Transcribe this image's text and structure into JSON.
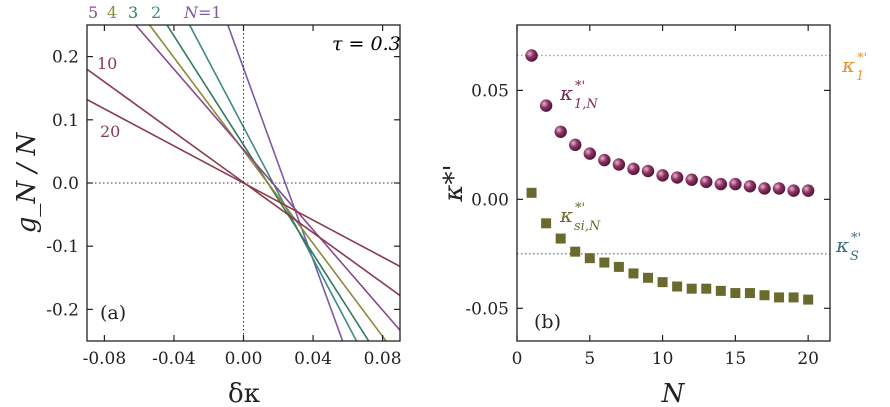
{
  "chart_data": [
    {
      "type": "line",
      "panel": "(a)",
      "annotation": "τ = 0.3",
      "xlabel": "δκ",
      "ylabel": "g_N / N",
      "xlim": [
        -0.09,
        0.09
      ],
      "ylim": [
        -0.25,
        0.25
      ],
      "xticks": [
        -0.08,
        -0.04,
        0.0,
        0.04,
        0.08
      ],
      "xtick_labels": [
        "-0.08",
        "-0.04",
        "0.00",
        "0.04",
        "0.08"
      ],
      "yticks": [
        0.2,
        0.1,
        0.0,
        -0.1,
        -0.2
      ],
      "ytick_labels": [
        "0.2",
        "0.1",
        "0.0",
        "-0.1",
        "-0.2"
      ],
      "grid": false,
      "reference_lines": {
        "x": 0.0,
        "y": 0.0
      },
      "series": [
        {
          "name": "N=1",
          "label": "N=1",
          "color": "#7b5aa6",
          "x": [
            -0.009,
            0.057
          ],
          "y": [
            0.25,
            -0.25
          ]
        },
        {
          "name": "2",
          "label": "2",
          "color": "#3d8a86",
          "x": [
            -0.031,
            0.065
          ],
          "y": [
            0.25,
            -0.25
          ]
        },
        {
          "name": "3",
          "label": "3",
          "color": "#2f7a5c",
          "x": [
            -0.044,
            0.072
          ],
          "y": [
            0.25,
            -0.25
          ]
        },
        {
          "name": "4",
          "label": "4",
          "color": "#8c8a3a",
          "x": [
            -0.054,
            0.082
          ],
          "y": [
            0.25,
            -0.25
          ]
        },
        {
          "name": "5",
          "label": "5",
          "color": "#8a4a8a",
          "x": [
            -0.062,
            0.09
          ],
          "y": [
            0.25,
            -0.233
          ]
        },
        {
          "name": "10",
          "label": "10",
          "color": "#8a3a4a",
          "x": [
            -0.09,
            0.09
          ],
          "y": [
            0.18,
            -0.178
          ]
        },
        {
          "name": "20",
          "label": "20",
          "color": "#8a3a4a",
          "x": [
            -0.09,
            0.09
          ],
          "y": [
            0.132,
            -0.132
          ]
        }
      ]
    },
    {
      "type": "scatter",
      "panel": "(b)",
      "xlabel": "N",
      "ylabel": "κ*'",
      "xlim": [
        0,
        21.5
      ],
      "ylim": [
        -0.065,
        0.08
      ],
      "xticks": [
        0,
        5,
        10,
        15,
        20
      ],
      "xtick_labels": [
        "0",
        "5",
        "10",
        "15",
        "20"
      ],
      "yticks": [
        0.05,
        0.0,
        -0.05
      ],
      "ytick_labels": [
        "0.05",
        "0.00",
        "-0.05"
      ],
      "grid": false,
      "series": [
        {
          "name": "κ*'1,N",
          "marker": "circle",
          "color": "#7a2a55",
          "x": [
            1,
            2,
            3,
            4,
            5,
            6,
            7,
            8,
            9,
            10,
            11,
            12,
            13,
            14,
            15,
            16,
            17,
            18,
            19,
            20
          ],
          "y": [
            0.066,
            0.043,
            0.031,
            0.025,
            0.021,
            0.018,
            0.016,
            0.014,
            0.013,
            0.011,
            0.01,
            0.009,
            0.008,
            0.007,
            0.007,
            0.006,
            0.005,
            0.005,
            0.004,
            0.004
          ]
        },
        {
          "name": "κ*'si,N",
          "marker": "square",
          "color": "#6b6a2e",
          "x": [
            1,
            2,
            3,
            4,
            5,
            6,
            7,
            8,
            9,
            10,
            11,
            12,
            13,
            14,
            15,
            16,
            17,
            18,
            19,
            20
          ],
          "y": [
            0.003,
            -0.011,
            -0.018,
            -0.024,
            -0.027,
            -0.029,
            -0.031,
            -0.034,
            -0.036,
            -0.038,
            -0.04,
            -0.041,
            -0.041,
            -0.042,
            -0.043,
            -0.043,
            -0.044,
            -0.045,
            -0.045,
            -0.046
          ]
        }
      ],
      "reference_lines": [
        {
          "name": "κ*'1",
          "y": 0.066,
          "color": "#e8922e",
          "style": "dotted"
        },
        {
          "name": "κ*'S",
          "y": -0.025,
          "color": "#3d6f80",
          "style": "dotted"
        }
      ],
      "annotations": [
        {
          "base": "κ",
          "sup": "*'",
          "sub": "1,N"
        },
        {
          "base": "κ",
          "sup": "*'",
          "sub": "si,N"
        },
        {
          "base": "κ",
          "sup": "*'",
          "sub": "1"
        },
        {
          "base": "κ",
          "sup": "*'",
          "sub": "S"
        }
      ]
    }
  ]
}
